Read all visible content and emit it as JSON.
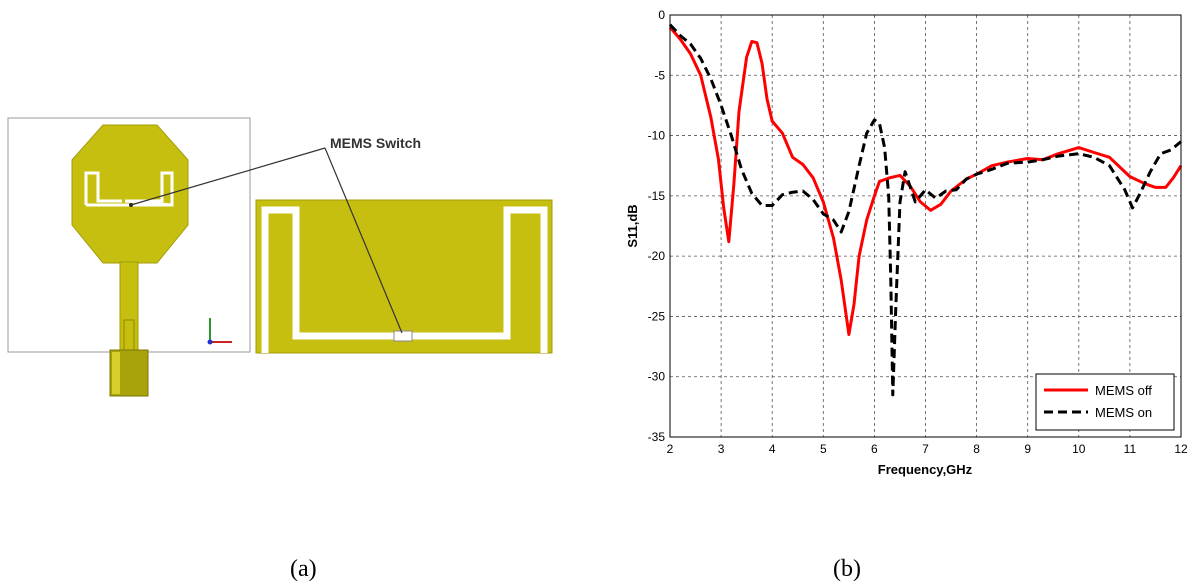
{
  "figure_a": {
    "callout_label": "MEMS Switch",
    "caption": "(a)",
    "colors": {
      "patch": "#c6bf10",
      "patch_edge": "#a39d08",
      "slot": "#ffffff",
      "connector": "#8f8a06"
    }
  },
  "figure_b": {
    "caption": "(b)"
  },
  "chart_data": {
    "type": "line",
    "title": "",
    "xlabel": "Frequency,GHz",
    "ylabel": "S11,dB",
    "xlim": [
      2,
      12
    ],
    "ylim": [
      -35,
      0
    ],
    "xticks": [
      2,
      3,
      4,
      5,
      6,
      7,
      8,
      9,
      10,
      11,
      12
    ],
    "yticks": [
      0,
      -5,
      -10,
      -15,
      -20,
      -25,
      -30,
      -35
    ],
    "grid": true,
    "legend_position": "bottom-right",
    "series": [
      {
        "name": "MEMS off",
        "color": "#ff0000",
        "style": "solid",
        "points": [
          [
            2.0,
            -1.0
          ],
          [
            2.2,
            -2.0
          ],
          [
            2.4,
            -3.2
          ],
          [
            2.6,
            -5.0
          ],
          [
            2.8,
            -8.5
          ],
          [
            2.95,
            -12.0
          ],
          [
            3.05,
            -16.0
          ],
          [
            3.15,
            -18.8
          ],
          [
            3.25,
            -14.0
          ],
          [
            3.35,
            -8.0
          ],
          [
            3.5,
            -3.5
          ],
          [
            3.6,
            -2.2
          ],
          [
            3.7,
            -2.3
          ],
          [
            3.8,
            -4.0
          ],
          [
            3.9,
            -7.0
          ],
          [
            4.0,
            -8.8
          ],
          [
            4.2,
            -9.8
          ],
          [
            4.4,
            -11.8
          ],
          [
            4.6,
            -12.4
          ],
          [
            4.8,
            -13.5
          ],
          [
            5.0,
            -15.5
          ],
          [
            5.2,
            -18.5
          ],
          [
            5.35,
            -22.0
          ],
          [
            5.5,
            -26.5
          ],
          [
            5.6,
            -24.0
          ],
          [
            5.7,
            -20.0
          ],
          [
            5.85,
            -17.0
          ],
          [
            6.0,
            -15.0
          ],
          [
            6.1,
            -13.8
          ],
          [
            6.3,
            -13.5
          ],
          [
            6.5,
            -13.3
          ],
          [
            6.7,
            -14.2
          ],
          [
            6.9,
            -15.5
          ],
          [
            7.1,
            -16.2
          ],
          [
            7.3,
            -15.7
          ],
          [
            7.5,
            -14.6
          ],
          [
            7.8,
            -13.6
          ],
          [
            8.0,
            -13.2
          ],
          [
            8.3,
            -12.5
          ],
          [
            8.6,
            -12.2
          ],
          [
            9.0,
            -11.9
          ],
          [
            9.3,
            -12.0
          ],
          [
            9.6,
            -11.5
          ],
          [
            10.0,
            -11.0
          ],
          [
            10.3,
            -11.4
          ],
          [
            10.6,
            -11.8
          ],
          [
            11.0,
            -13.4
          ],
          [
            11.3,
            -14.0
          ],
          [
            11.5,
            -14.3
          ],
          [
            11.7,
            -14.3
          ],
          [
            11.85,
            -13.5
          ],
          [
            12.0,
            -12.5
          ]
        ]
      },
      {
        "name": "MEMS on",
        "color": "#000000",
        "style": "dashed",
        "points": [
          [
            2.0,
            -0.8
          ],
          [
            2.2,
            -1.7
          ],
          [
            2.4,
            -2.4
          ],
          [
            2.6,
            -3.6
          ],
          [
            2.8,
            -5.3
          ],
          [
            3.0,
            -7.5
          ],
          [
            3.2,
            -10.0
          ],
          [
            3.4,
            -12.8
          ],
          [
            3.6,
            -14.8
          ],
          [
            3.8,
            -15.8
          ],
          [
            4.0,
            -15.8
          ],
          [
            4.2,
            -14.9
          ],
          [
            4.4,
            -14.7
          ],
          [
            4.6,
            -14.6
          ],
          [
            4.8,
            -15.3
          ],
          [
            5.0,
            -16.5
          ],
          [
            5.2,
            -17.0
          ],
          [
            5.35,
            -18.0
          ],
          [
            5.5,
            -16.3
          ],
          [
            5.7,
            -12.5
          ],
          [
            5.85,
            -9.8
          ],
          [
            6.0,
            -8.7
          ],
          [
            6.1,
            -9.0
          ],
          [
            6.2,
            -11.0
          ],
          [
            6.28,
            -15.0
          ],
          [
            6.32,
            -22.0
          ],
          [
            6.36,
            -31.5
          ],
          [
            6.42,
            -24.0
          ],
          [
            6.5,
            -15.5
          ],
          [
            6.6,
            -13.0
          ],
          [
            6.8,
            -15.5
          ],
          [
            7.0,
            -14.5
          ],
          [
            7.2,
            -15.2
          ],
          [
            7.4,
            -14.6
          ],
          [
            7.6,
            -14.5
          ],
          [
            7.8,
            -13.6
          ],
          [
            8.0,
            -13.2
          ],
          [
            8.3,
            -12.8
          ],
          [
            8.6,
            -12.3
          ],
          [
            9.0,
            -12.2
          ],
          [
            9.3,
            -12.0
          ],
          [
            9.6,
            -11.7
          ],
          [
            10.0,
            -11.5
          ],
          [
            10.3,
            -11.8
          ],
          [
            10.6,
            -12.5
          ],
          [
            10.9,
            -14.5
          ],
          [
            11.05,
            -16.0
          ],
          [
            11.2,
            -14.8
          ],
          [
            11.4,
            -13.0
          ],
          [
            11.6,
            -11.5
          ],
          [
            11.8,
            -11.2
          ],
          [
            12.0,
            -10.5
          ]
        ]
      }
    ]
  }
}
